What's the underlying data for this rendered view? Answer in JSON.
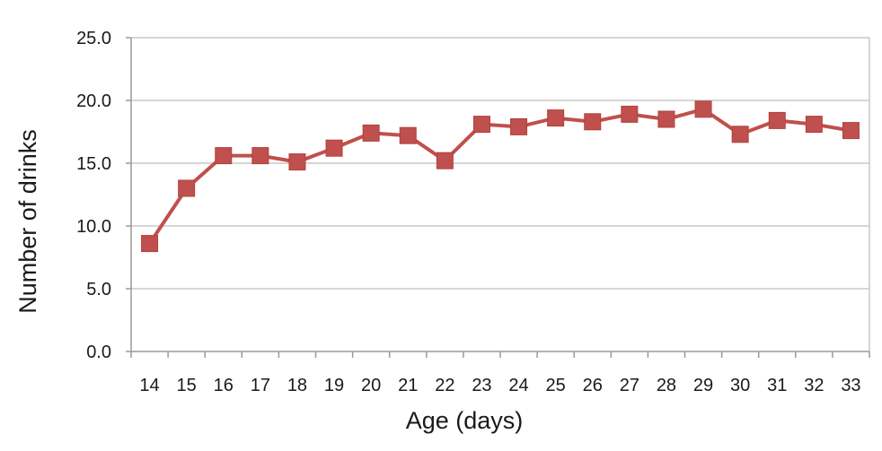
{
  "chart_data": {
    "type": "line",
    "xlabel": "Age (days)",
    "ylabel": "Number of drinks",
    "ylim": [
      0,
      25
    ],
    "yticks": [
      "0.0",
      "5.0",
      "10.0",
      "15.0",
      "20.0",
      "25.0"
    ],
    "categories": [
      "14",
      "15",
      "16",
      "17",
      "18",
      "19",
      "20",
      "21",
      "22",
      "23",
      "24",
      "25",
      "26",
      "27",
      "28",
      "29",
      "30",
      "31",
      "32",
      "33"
    ],
    "series": [
      {
        "values": [
          8.6,
          13.0,
          15.6,
          15.6,
          15.1,
          16.2,
          17.4,
          17.2,
          15.2,
          18.1,
          17.9,
          18.6,
          18.3,
          18.9,
          18.5,
          19.3,
          17.3,
          18.4,
          18.1,
          17.6
        ]
      }
    ],
    "grid": true,
    "legend": "none",
    "colors": {
      "series": "#c0504d",
      "marker": "#c0504d",
      "grid": "#c8c8c8",
      "axis": "#9a9a9a"
    }
  }
}
